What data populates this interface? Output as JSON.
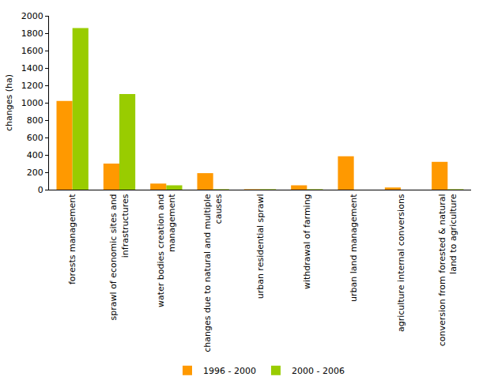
{
  "chart_data": {
    "type": "bar",
    "y_label": "changes (ha)",
    "categories": [
      "forests management",
      "sprawl of economic sites and infrastructures",
      "water bodies creation and management",
      "changes due to natural and multiple causes",
      "urban residential sprawl",
      "withdrawal of farming",
      "urban land management",
      "agriculture internal conversions",
      "conversion from forested & natural land to agriculture"
    ],
    "series": [
      {
        "name": "1996 - 2000",
        "color": "#FF9900",
        "values": [
          1020,
          300,
          70,
          190,
          5,
          50,
          385,
          25,
          320
        ]
      },
      {
        "name": "2000 - 2006",
        "color": "#99CC00",
        "values": [
          1860,
          1100,
          50,
          5,
          5,
          5,
          0,
          0,
          5
        ]
      }
    ],
    "ylim": [
      0,
      2000
    ],
    "yticks": [
      0,
      200,
      400,
      600,
      800,
      1000,
      1200,
      1400,
      1600,
      1800,
      2000
    ],
    "grid": false,
    "legend": "bottom"
  }
}
